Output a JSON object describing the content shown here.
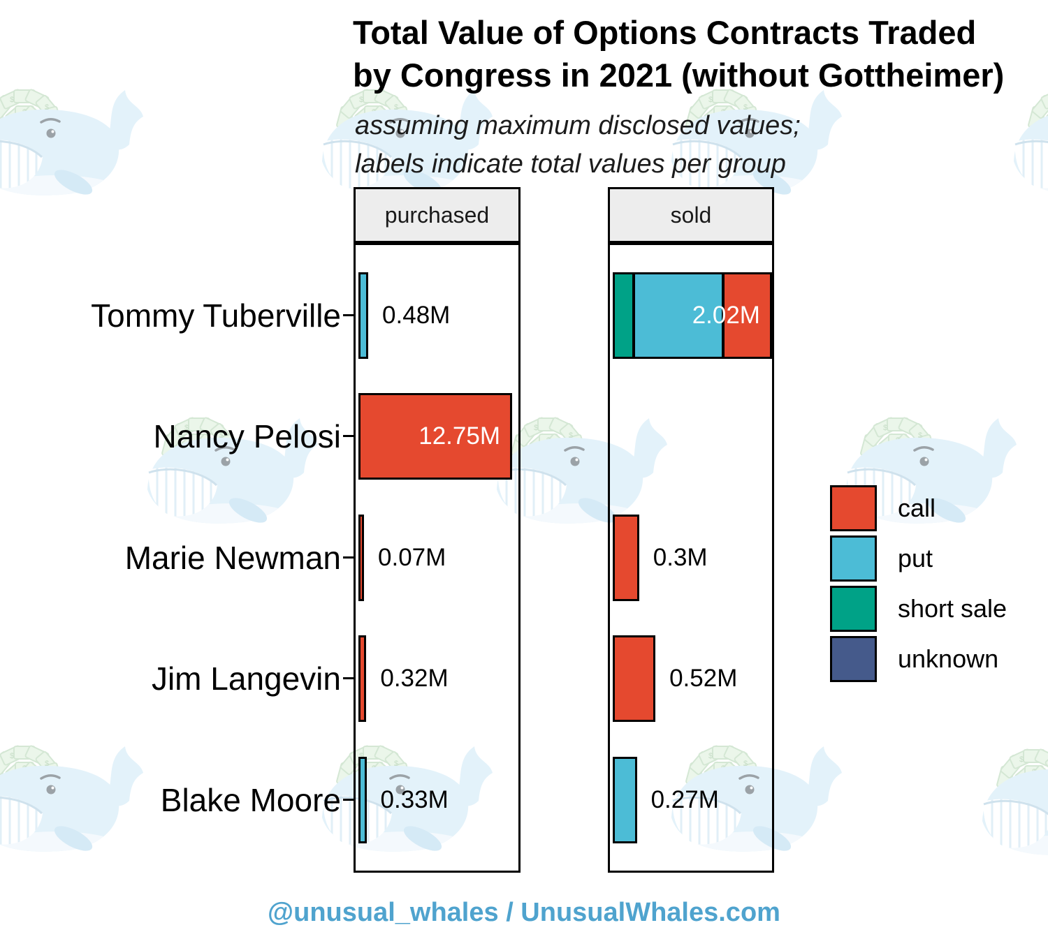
{
  "title": {
    "line1": "Total Value of Options Contracts Traded",
    "line2": "by Congress in 2021 (without Gottheimer)"
  },
  "subtitle": {
    "line1": "assuming maximum disclosed values;",
    "line2": "labels indicate total values per group"
  },
  "caption": "@unusual_whales / UnusualWhales.com",
  "colors": {
    "call": "#E5492F",
    "put": "#4CBCD6",
    "short_sale": "#00A287",
    "unknown": "#455A8B",
    "caption": "#4FA3CE",
    "strip_bg": "#EDEDED",
    "border": "#000000",
    "inside_label": "#FFFFFF"
  },
  "chart_data": {
    "type": "bar",
    "orientation": "horizontal",
    "stacked": true,
    "value_unit": "M (millions USD)",
    "categories": [
      "Tommy Tuberville",
      "Nancy Pelosi",
      "Marie Newman",
      "Jim Langevin",
      "Blake Moore"
    ],
    "legend_position": "right",
    "legend": [
      {
        "label": "call",
        "color": "#E5492F"
      },
      {
        "label": "put",
        "color": "#4CBCD6"
      },
      {
        "label": "short sale",
        "color": "#00A287"
      },
      {
        "label": "unknown",
        "color": "#455A8B"
      }
    ],
    "facets": [
      {
        "label": "purchased",
        "xmax": 12.75,
        "rows": [
          {
            "category": "Tommy Tuberville",
            "total": 0.48,
            "label": "0.48M",
            "label_placement": "outside",
            "segments": [
              {
                "type": "put",
                "value": 0.48
              }
            ]
          },
          {
            "category": "Nancy Pelosi",
            "total": 12.75,
            "label": "12.75M",
            "label_placement": "inside",
            "segments": [
              {
                "type": "call",
                "value": 12.75
              }
            ]
          },
          {
            "category": "Marie Newman",
            "total": 0.07,
            "label": "0.07M",
            "label_placement": "outside",
            "segments": [
              {
                "type": "call",
                "value": 0.07
              }
            ]
          },
          {
            "category": "Jim Langevin",
            "total": 0.32,
            "label": "0.32M",
            "label_placement": "outside",
            "segments": [
              {
                "type": "call",
                "value": 0.32
              }
            ]
          },
          {
            "category": "Blake Moore",
            "total": 0.33,
            "label": "0.33M",
            "label_placement": "outside",
            "segments": [
              {
                "type": "put",
                "value": 0.33
              }
            ]
          }
        ]
      },
      {
        "label": "sold",
        "xmax": 2.02,
        "rows": [
          {
            "category": "Tommy Tuberville",
            "total": 2.02,
            "label": "2.02M",
            "label_placement": "inside",
            "segments": [
              {
                "type": "short sale",
                "value": 0.24
              },
              {
                "type": "put",
                "value": 1.17
              },
              {
                "type": "call",
                "value": 0.61
              }
            ]
          },
          {
            "category": "Nancy Pelosi",
            "total": 0,
            "label": "",
            "label_placement": "none",
            "segments": []
          },
          {
            "category": "Marie Newman",
            "total": 0.3,
            "label": "0.3M",
            "label_placement": "outside",
            "segments": [
              {
                "type": "call",
                "value": 0.3
              }
            ]
          },
          {
            "category": "Jim Langevin",
            "total": 0.52,
            "label": "0.52M",
            "label_placement": "outside",
            "segments": [
              {
                "type": "call",
                "value": 0.52
              }
            ]
          },
          {
            "category": "Blake Moore",
            "total": 0.27,
            "label": "0.27M",
            "label_placement": "outside",
            "segments": [
              {
                "type": "put",
                "value": 0.27
              }
            ]
          }
        ]
      }
    ]
  }
}
